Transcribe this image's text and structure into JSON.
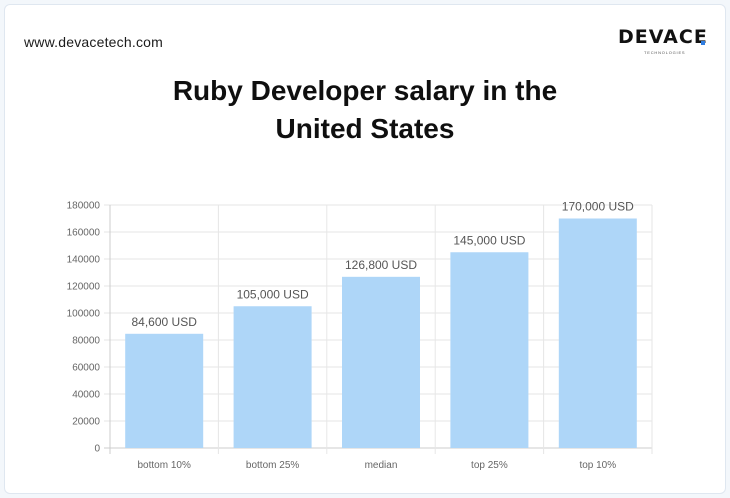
{
  "header": {
    "site": "www.devacetech.com",
    "logo_word": "DEVACE",
    "logo_sub": "TECHNOLOGIES"
  },
  "title_lines": [
    "Ruby Developer salary in the",
    "United States"
  ],
  "colors": {
    "bar": "#aed6f8",
    "grid": "#e6e6e6",
    "axis": "#cccccc",
    "accent": "#2f7de1"
  },
  "chart_data": {
    "type": "bar",
    "title": "Ruby Developer salary in the United States",
    "xlabel": "",
    "ylabel": "",
    "categories": [
      "bottom 10%",
      "bottom 25%",
      "median",
      "top 25%",
      "top 10%"
    ],
    "values": [
      84600,
      105000,
      126800,
      145000,
      170000
    ],
    "data_labels": [
      "84,600 USD",
      "105,000 USD",
      "126,800 USD",
      "145,000 USD",
      "170,000 USD"
    ],
    "yticks": [
      0,
      20000,
      40000,
      60000,
      80000,
      100000,
      120000,
      140000,
      160000,
      180000
    ],
    "ylim": [
      0,
      180000
    ],
    "grid": true
  }
}
